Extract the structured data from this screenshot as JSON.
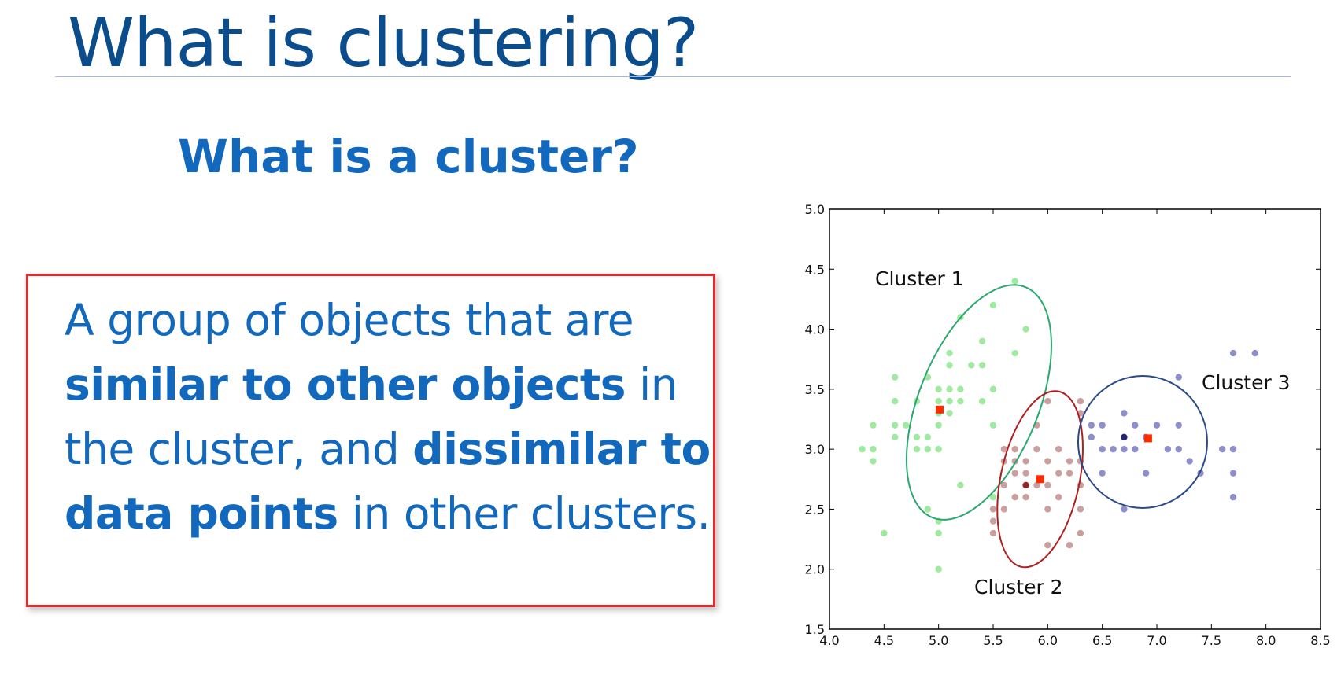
{
  "slide": {
    "title": "What is clustering?",
    "subtitle": "What is a cluster?",
    "definition": {
      "part1": "A group of objects that are ",
      "bold1": "similar to other objects",
      "part2": " in the cluster, and ",
      "bold2": "dissimilar to data points",
      "part3": " in other clusters."
    }
  },
  "colors": {
    "title": "#0b4c8c",
    "text": "#1168bd",
    "box_border": "#e32b2b",
    "cluster1": "#9be89b",
    "cluster1_dark": "#6fd06f",
    "cluster2": "#c99a9a",
    "cluster2_dark": "#8b1a1a",
    "cluster3": "#8888c8",
    "cluster3_dark": "#1a1a6e",
    "centroid": "#ff2a00",
    "ellipse1": "#2aa870",
    "ellipse2": "#b02020",
    "ellipse3": "#2a4a8a"
  },
  "chart_data": {
    "type": "scatter",
    "title": "",
    "xlabel": "",
    "ylabel": "",
    "xlim": [
      4.0,
      8.5
    ],
    "ylim": [
      1.5,
      5.0
    ],
    "xticks": [
      "4.0",
      "4.5",
      "5.0",
      "5.5",
      "6.0",
      "6.5",
      "7.0",
      "7.5",
      "8.0",
      "8.5"
    ],
    "yticks": [
      "1.5",
      "2.0",
      "2.5",
      "3.0",
      "3.5",
      "4.0",
      "4.5",
      "5.0"
    ],
    "series": [
      {
        "name": "Cluster 1",
        "points": [
          [
            4.3,
            3.0
          ],
          [
            4.4,
            2.9
          ],
          [
            4.4,
            3.0
          ],
          [
            4.4,
            3.2
          ],
          [
            4.5,
            2.3
          ],
          [
            4.6,
            3.1
          ],
          [
            4.6,
            3.2
          ],
          [
            4.6,
            3.4
          ],
          [
            4.6,
            3.6
          ],
          [
            4.7,
            3.2
          ],
          [
            4.8,
            3.0
          ],
          [
            4.8,
            3.1
          ],
          [
            4.8,
            3.4
          ],
          [
            4.9,
            3.0
          ],
          [
            4.9,
            3.1
          ],
          [
            4.9,
            3.6
          ],
          [
            5.0,
            3.0
          ],
          [
            5.0,
            3.2
          ],
          [
            5.0,
            3.3
          ],
          [
            5.0,
            3.4
          ],
          [
            5.0,
            3.5
          ],
          [
            5.0,
            2.3
          ],
          [
            5.1,
            3.3
          ],
          [
            5.1,
            3.4
          ],
          [
            5.1,
            3.5
          ],
          [
            5.1,
            3.7
          ],
          [
            5.1,
            3.8
          ],
          [
            5.2,
            3.4
          ],
          [
            5.2,
            3.5
          ],
          [
            5.2,
            4.1
          ],
          [
            5.3,
            3.7
          ],
          [
            5.4,
            3.4
          ],
          [
            5.4,
            3.7
          ],
          [
            5.4,
            3.9
          ],
          [
            5.5,
            3.5
          ],
          [
            5.5,
            4.2
          ],
          [
            5.7,
            3.8
          ],
          [
            5.7,
            4.4
          ],
          [
            5.8,
            4.0
          ],
          [
            4.9,
            2.5
          ],
          [
            5.0,
            2.4
          ],
          [
            5.2,
            2.7
          ],
          [
            5.5,
            2.6
          ],
          [
            5.0,
            2.0
          ],
          [
            5.5,
            3.2
          ]
        ],
        "centroid": [
          5.01,
          3.33
        ],
        "label": "Cluster 1"
      },
      {
        "name": "Cluster 2",
        "points": [
          [
            5.5,
            2.4
          ],
          [
            5.5,
            2.5
          ],
          [
            5.6,
            2.9
          ],
          [
            5.6,
            2.7
          ],
          [
            5.6,
            2.5
          ],
          [
            5.7,
            2.8
          ],
          [
            5.7,
            2.6
          ],
          [
            5.7,
            3.0
          ],
          [
            5.8,
            2.7
          ],
          [
            5.8,
            2.6
          ],
          [
            5.8,
            2.8
          ],
          [
            5.9,
            3.0
          ],
          [
            5.9,
            3.2
          ],
          [
            6.0,
            2.2
          ],
          [
            6.0,
            2.7
          ],
          [
            6.0,
            2.9
          ],
          [
            6.0,
            3.4
          ],
          [
            6.1,
            2.8
          ],
          [
            6.1,
            3.0
          ],
          [
            6.1,
            2.6
          ],
          [
            6.2,
            2.8
          ],
          [
            6.2,
            2.2
          ],
          [
            6.2,
            2.9
          ],
          [
            6.3,
            2.3
          ],
          [
            6.3,
            2.5
          ],
          [
            6.3,
            2.7
          ],
          [
            6.3,
            2.9
          ],
          [
            6.3,
            3.3
          ],
          [
            6.3,
            3.4
          ],
          [
            5.6,
            3.0
          ],
          [
            5.7,
            2.9
          ],
          [
            5.9,
            2.7
          ],
          [
            6.0,
            2.5
          ],
          [
            5.5,
            2.3
          ],
          [
            5.8,
            2.9
          ]
        ],
        "centroid": [
          5.93,
          2.75
        ],
        "label": "Cluster 2"
      },
      {
        "name": "Cluster 3",
        "points": [
          [
            6.4,
            3.2
          ],
          [
            6.4,
            3.1
          ],
          [
            6.5,
            3.0
          ],
          [
            6.5,
            3.2
          ],
          [
            6.6,
            3.0
          ],
          [
            6.7,
            3.1
          ],
          [
            6.7,
            3.0
          ],
          [
            6.7,
            3.3
          ],
          [
            6.8,
            3.0
          ],
          [
            6.8,
            3.2
          ],
          [
            6.9,
            3.1
          ],
          [
            7.0,
            3.2
          ],
          [
            7.1,
            3.0
          ],
          [
            7.2,
            3.6
          ],
          [
            7.2,
            3.2
          ],
          [
            7.2,
            3.0
          ],
          [
            7.3,
            2.9
          ],
          [
            7.4,
            2.8
          ],
          [
            7.6,
            3.0
          ],
          [
            7.7,
            3.8
          ],
          [
            7.7,
            2.6
          ],
          [
            7.7,
            2.8
          ],
          [
            7.7,
            3.0
          ],
          [
            7.9,
            3.8
          ],
          [
            6.5,
            2.8
          ],
          [
            6.7,
            2.5
          ],
          [
            6.9,
            2.8
          ]
        ],
        "centroid": [
          6.92,
          3.09
        ],
        "label": "Cluster 3"
      }
    ],
    "annotations": [
      "Cluster 1",
      "Cluster 2",
      "Cluster 3"
    ]
  }
}
